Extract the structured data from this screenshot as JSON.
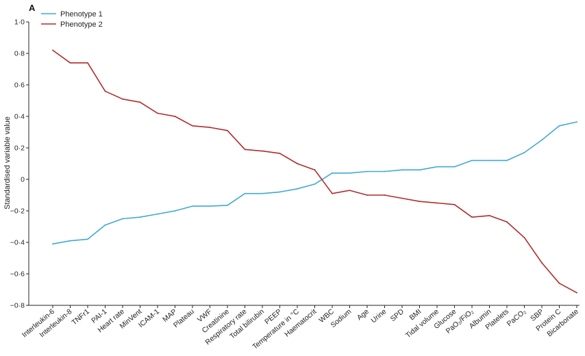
{
  "chart_data": {
    "type": "line",
    "panel_label": "A",
    "title": "",
    "xlabel": "",
    "ylabel": "Standardised variable value",
    "ylim": [
      -0.8,
      1.0
    ],
    "yticks": [
      -0.8,
      -0.6,
      -0.4,
      -0.2,
      0,
      0.2,
      0.4,
      0.6,
      0.8,
      1.0
    ],
    "ytick_labels": [
      "−0·8",
      "−0·6",
      "−0·4",
      "−0·2",
      "0",
      "0·2",
      "0·4",
      "0·6",
      "0·8",
      "1·0"
    ],
    "grid": false,
    "legend_position": "top-left",
    "categories": [
      "Interleukin-6",
      "Interleukin-8",
      "TNFr1",
      "PAI-1",
      "Heart rate",
      "MinVent",
      "ICAM-1",
      "MAP",
      "Plateau",
      "VWF",
      "Creatinine",
      "Respiratory rate",
      "Total bilirubin",
      "PEEP",
      "Temperature in °C",
      "Haematocrit",
      "WBC",
      "Sodium",
      "Age",
      "Urine",
      "SPD",
      "BMI",
      "Tidal volume",
      "Glucose",
      "PaO₂/FiO₂",
      "Albumin",
      "Platelets",
      "PaCO₂",
      "SBP",
      "Protein C",
      "Bicarbonate"
    ],
    "series": [
      {
        "name": "Phenotype 1",
        "color": "#3fa9d4",
        "values": [
          -0.41,
          -0.39,
          -0.38,
          -0.29,
          -0.25,
          -0.24,
          -0.22,
          -0.2,
          -0.17,
          -0.17,
          -0.165,
          -0.09,
          -0.09,
          -0.08,
          -0.06,
          -0.03,
          0.04,
          0.04,
          0.05,
          0.05,
          0.06,
          0.06,
          0.08,
          0.08,
          0.12,
          0.12,
          0.12,
          0.17,
          0.25,
          0.34,
          0.365
        ]
      },
      {
        "name": "Phenotype 2",
        "color": "#b22a2a",
        "values": [
          0.82,
          0.74,
          0.74,
          0.56,
          0.51,
          0.49,
          0.42,
          0.4,
          0.34,
          0.33,
          0.31,
          0.19,
          0.18,
          0.165,
          0.1,
          0.06,
          -0.09,
          -0.07,
          -0.1,
          -0.1,
          -0.12,
          -0.14,
          -0.15,
          -0.16,
          -0.24,
          -0.23,
          -0.27,
          -0.37,
          -0.53,
          -0.66,
          -0.72
        ]
      }
    ]
  }
}
